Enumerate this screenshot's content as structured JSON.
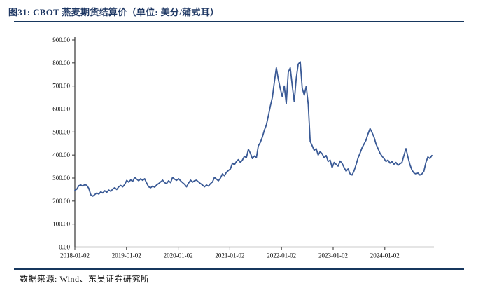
{
  "figure": {
    "title": "图31:  CBOT 燕麦期货结算价（单位: 美分/蒲式耳）",
    "source": "数据来源: Wind、东吴证券研究所"
  },
  "colors": {
    "title": "#1F3864",
    "divider": "#17375E",
    "line": "#3A5A96",
    "axis": "#333333",
    "tick_label": "#000000"
  },
  "chart_data": {
    "type": "line",
    "title": "CBOT燕麦期货结算价",
    "unit": "美分/蒲式耳",
    "xlabel": "",
    "ylabel": "",
    "ylim": [
      0,
      900
    ],
    "grid": false,
    "legend": false,
    "y_ticks": [
      {
        "v": 0,
        "label": "0.00"
      },
      {
        "v": 100,
        "label": "100.00"
      },
      {
        "v": 200,
        "label": "200.00"
      },
      {
        "v": 300,
        "label": "300.00"
      },
      {
        "v": 400,
        "label": "400.00"
      },
      {
        "v": 500,
        "label": "500.00"
      },
      {
        "v": 600,
        "label": "600.00"
      },
      {
        "v": 700,
        "label": "700.00"
      },
      {
        "v": 800,
        "label": "800.00"
      },
      {
        "v": 900,
        "label": "900.00"
      }
    ],
    "x_ticks": [
      "2018-01-02",
      "2019-01-02",
      "2020-01-02",
      "2021-01-02",
      "2022-01-02",
      "2023-01-02",
      "2024-01-02"
    ],
    "x_start": "2018-01-02",
    "x_end": "2024-12",
    "series": [
      {
        "name": "CBOT燕麦期货结算价（美分/蒲式耳）",
        "values": [
          246,
          252,
          267,
          270,
          265,
          272,
          268,
          255,
          227,
          221,
          228,
          235,
          230,
          240,
          235,
          245,
          238,
          248,
          242,
          252,
          258,
          250,
          262,
          268,
          262,
          272,
          290,
          282,
          292,
          285,
          303,
          295,
          288,
          297,
          290,
          297,
          278,
          262,
          258,
          265,
          260,
          270,
          276,
          283,
          291,
          280,
          276,
          288,
          280,
          303,
          295,
          290,
          297,
          288,
          280,
          273,
          262,
          278,
          291,
          282,
          288,
          291,
          283,
          276,
          270,
          262,
          270,
          265,
          276,
          283,
          303,
          295,
          288,
          300,
          318,
          310,
          325,
          333,
          340,
          365,
          358,
          372,
          380,
          368,
          378,
          395,
          388,
          425,
          408,
          385,
          396,
          388,
          440,
          455,
          478,
          508,
          530,
          570,
          612,
          650,
          715,
          779,
          730,
          688,
          654,
          700,
          623,
          760,
          779,
          700,
          632,
          735,
          795,
          805,
          690,
          660,
          699,
          620,
          459,
          440,
          420,
          428,
          400,
          415,
          405,
          388,
          398,
          372,
          378,
          345,
          368,
          360,
          352,
          374,
          364,
          346,
          330,
          340,
          318,
          313,
          332,
          358,
          388,
          408,
          432,
          448,
          465,
          492,
          515,
          498,
          478,
          448,
          428,
          408,
          395,
          385,
          372,
          378,
          365,
          372,
          360,
          368,
          355,
          362,
          368,
          398,
          428,
          392,
          358,
          335,
          322,
          318,
          322,
          313,
          318,
          330,
          368,
          392,
          385,
          398
        ]
      }
    ]
  }
}
